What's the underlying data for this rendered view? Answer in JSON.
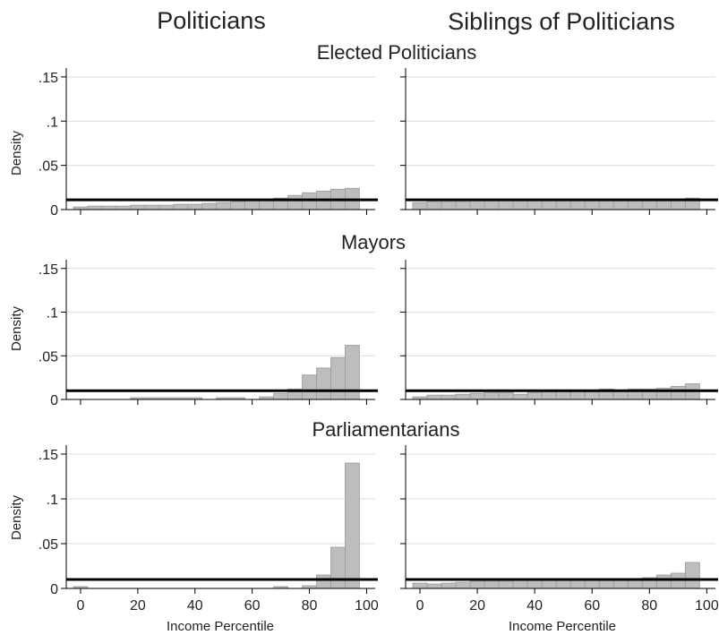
{
  "figure": {
    "column_titles": [
      "Politicians",
      "Siblings of Politicians"
    ],
    "y_axis_label": "Density",
    "x_axis_label": "Income Percentile"
  },
  "colors": {
    "bar_fill": "#bdbdbd",
    "bar_stroke": "#9a9a9a",
    "grid": "#e3e3e3",
    "reference_line": "#000000"
  },
  "chart_data": [
    {
      "type": "bar",
      "row_title": "Elected Politicians",
      "column": "Politicians",
      "xlabel": "",
      "ylabel": "Density",
      "xlim": [
        -5,
        103
      ],
      "ylim": [
        0,
        0.16
      ],
      "x_ticks": [
        0,
        20,
        40,
        60,
        80,
        100
      ],
      "x_tick_labels_shown": false,
      "y_ticks": [
        0,
        0.05,
        0.1,
        0.15
      ],
      "y_tick_labels": [
        "0",
        ".05",
        ".1",
        ".15"
      ],
      "bin_width": 5,
      "x": [
        0,
        5,
        10,
        15,
        20,
        25,
        30,
        35,
        40,
        45,
        50,
        55,
        60,
        65,
        70,
        75,
        80,
        85,
        90,
        95
      ],
      "values": [
        0.003,
        0.004,
        0.004,
        0.004,
        0.005,
        0.005,
        0.005,
        0.006,
        0.006,
        0.007,
        0.008,
        0.009,
        0.01,
        0.011,
        0.013,
        0.016,
        0.019,
        0.021,
        0.023,
        0.024
      ],
      "reference_line": 0.011,
      "grid": true
    },
    {
      "type": "bar",
      "row_title": "Elected Politicians",
      "column": "Siblings of Politicians",
      "xlabel": "",
      "ylabel": "",
      "xlim": [
        -5,
        103
      ],
      "ylim": [
        0,
        0.16
      ],
      "x_ticks": [
        0,
        20,
        40,
        60,
        80,
        100
      ],
      "x_tick_labels_shown": false,
      "y_ticks": [
        0,
        0.05,
        0.1,
        0.15
      ],
      "y_tick_labels": [
        "",
        "",
        "",
        ""
      ],
      "bin_width": 5,
      "x": [
        0,
        5,
        10,
        15,
        20,
        25,
        30,
        35,
        40,
        45,
        50,
        55,
        60,
        65,
        70,
        75,
        80,
        85,
        90,
        95
      ],
      "values": [
        0.008,
        0.009,
        0.009,
        0.009,
        0.01,
        0.01,
        0.01,
        0.01,
        0.01,
        0.01,
        0.01,
        0.01,
        0.01,
        0.01,
        0.01,
        0.01,
        0.01,
        0.01,
        0.011,
        0.013
      ],
      "reference_line": 0.011,
      "grid": true
    },
    {
      "type": "bar",
      "row_title": "Mayors",
      "column": "Politicians",
      "xlabel": "",
      "ylabel": "Density",
      "xlim": [
        -5,
        103
      ],
      "ylim": [
        0,
        0.16
      ],
      "x_ticks": [
        0,
        20,
        40,
        60,
        80,
        100
      ],
      "x_tick_labels_shown": false,
      "y_ticks": [
        0,
        0.05,
        0.1,
        0.15
      ],
      "y_tick_labels": [
        "0",
        ".05",
        ".1",
        ".15"
      ],
      "bin_width": 5,
      "x": [
        0,
        5,
        10,
        15,
        20,
        25,
        30,
        35,
        40,
        45,
        50,
        55,
        60,
        65,
        70,
        75,
        80,
        85,
        90,
        95
      ],
      "values": [
        0,
        0,
        0,
        0,
        0.002,
        0.002,
        0.002,
        0.002,
        0.002,
        0,
        0.002,
        0.002,
        0,
        0.003,
        0.007,
        0.012,
        0.028,
        0.036,
        0.048,
        0.062
      ],
      "reference_line": 0.01,
      "grid": true
    },
    {
      "type": "bar",
      "row_title": "Mayors",
      "column": "Siblings of Politicians",
      "xlabel": "",
      "ylabel": "",
      "xlim": [
        -5,
        103
      ],
      "ylim": [
        0,
        0.16
      ],
      "x_ticks": [
        0,
        20,
        40,
        60,
        80,
        100
      ],
      "x_tick_labels_shown": false,
      "y_ticks": [
        0,
        0.05,
        0.1,
        0.15
      ],
      "y_tick_labels": [
        "",
        "",
        "",
        ""
      ],
      "bin_width": 5,
      "x": [
        0,
        5,
        10,
        15,
        20,
        25,
        30,
        35,
        40,
        45,
        50,
        55,
        60,
        65,
        70,
        75,
        80,
        85,
        90,
        95
      ],
      "values": [
        0.003,
        0.005,
        0.005,
        0.006,
        0.007,
        0.008,
        0.008,
        0.006,
        0.008,
        0.009,
        0.01,
        0.01,
        0.009,
        0.012,
        0.01,
        0.012,
        0.012,
        0.013,
        0.015,
        0.018
      ],
      "reference_line": 0.01,
      "grid": true
    },
    {
      "type": "bar",
      "row_title": "Parliamentarians",
      "column": "Politicians",
      "xlabel": "Income Percentile",
      "ylabel": "Density",
      "xlim": [
        -5,
        103
      ],
      "ylim": [
        0,
        0.16
      ],
      "x_ticks": [
        0,
        20,
        40,
        60,
        80,
        100
      ],
      "x_tick_labels_shown": true,
      "x_tick_labels": [
        "0",
        "20",
        "40",
        "60",
        "80",
        "100"
      ],
      "y_ticks": [
        0,
        0.05,
        0.1,
        0.15
      ],
      "y_tick_labels": [
        "0",
        ".05",
        ".1",
        ".15"
      ],
      "bin_width": 5,
      "x": [
        0,
        5,
        10,
        15,
        20,
        25,
        30,
        35,
        40,
        45,
        50,
        55,
        60,
        65,
        70,
        75,
        80,
        85,
        90,
        95
      ],
      "values": [
        0.002,
        0,
        0,
        0,
        0,
        0,
        0,
        0,
        0,
        0,
        0,
        0,
        0,
        0,
        0.002,
        0,
        0.003,
        0.015,
        0.046,
        0.14
      ],
      "reference_line": 0.01,
      "grid": true
    },
    {
      "type": "bar",
      "row_title": "Parliamentarians",
      "column": "Siblings of Politicians",
      "xlabel": "Income Percentile",
      "ylabel": "",
      "xlim": [
        -5,
        103
      ],
      "ylim": [
        0,
        0.16
      ],
      "x_ticks": [
        0,
        20,
        40,
        60,
        80,
        100
      ],
      "x_tick_labels_shown": true,
      "x_tick_labels": [
        "0",
        "20",
        "40",
        "60",
        "80",
        "100"
      ],
      "y_ticks": [
        0,
        0.05,
        0.1,
        0.15
      ],
      "y_tick_labels": [
        "",
        "",
        "",
        ""
      ],
      "bin_width": 5,
      "x": [
        0,
        5,
        10,
        15,
        20,
        25,
        30,
        35,
        40,
        45,
        50,
        55,
        60,
        65,
        70,
        75,
        80,
        85,
        90,
        95
      ],
      "values": [
        0.006,
        0.005,
        0.006,
        0.007,
        0.008,
        0.008,
        0.008,
        0.009,
        0.009,
        0.009,
        0.01,
        0.01,
        0.01,
        0.01,
        0.01,
        0.01,
        0.012,
        0.015,
        0.017,
        0.029
      ],
      "reference_line": 0.01,
      "grid": true
    }
  ]
}
